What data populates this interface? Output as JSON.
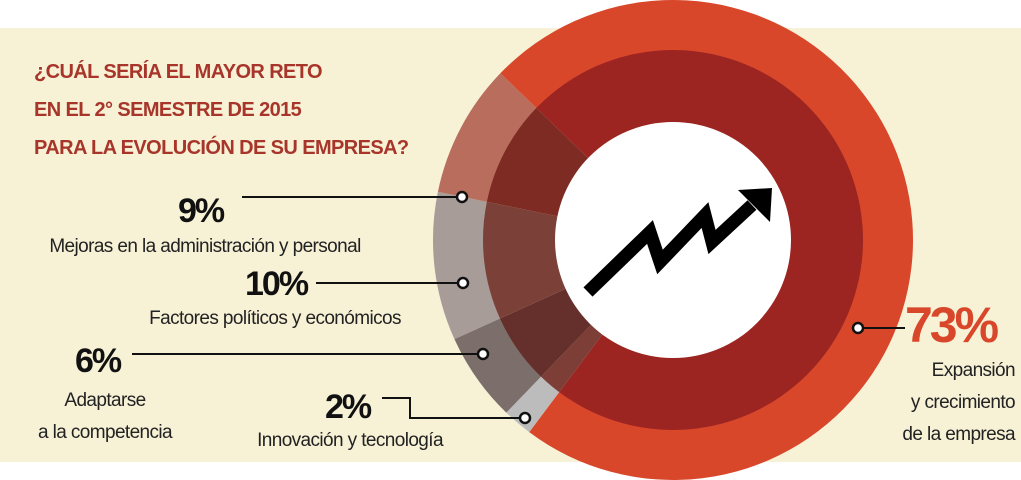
{
  "chart_data": {
    "type": "donut",
    "title": "¿CUÁL SERÍA EL MAYOR RETO\nEN EL 2° SEMESTRE DE 2015\nPARA LA EVOLUCIÓN DE SU EMPRESA?",
    "categories": [
      "Expansión\ny crecimiento\nde la empresa",
      "Innovación y tecnología",
      "Adaptarse\na la competencia",
      "Factores políticos y económicos",
      "Mejoras en la administración y personal"
    ],
    "values": [
      73,
      2,
      6,
      10,
      9
    ],
    "value_labels": [
      "73%",
      "2%",
      "6%",
      "10%",
      "9%"
    ],
    "colors": [
      "#d9472b",
      "#bdbcbc",
      "#7b6e6b",
      "#a89c99",
      "#b86d5d"
    ],
    "inner_colors": [
      "#9c2521",
      "#7c3e36",
      "#652f2b",
      "#7b4038",
      "#7e2b24"
    ]
  }
}
